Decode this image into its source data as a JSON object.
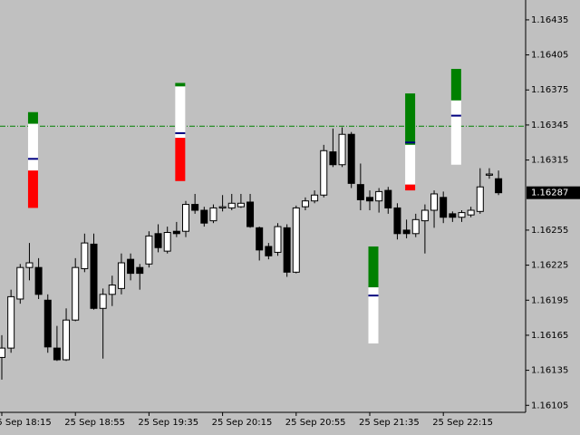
{
  "chart_data": {
    "type": "candlestick",
    "categories": [
      "25 Sep 18:15",
      null,
      null,
      null,
      null,
      null,
      null,
      null,
      "25 Sep 18:55",
      null,
      null,
      null,
      null,
      null,
      null,
      null,
      "25 Sep 19:35",
      null,
      null,
      null,
      null,
      null,
      null,
      null,
      "25 Sep 20:15",
      null,
      null,
      null,
      null,
      null,
      null,
      null,
      "25 Sep 20:55",
      null,
      null,
      null,
      null,
      null,
      null,
      null,
      "25 Sep 21:35",
      null,
      null,
      null,
      null,
      null,
      null,
      null,
      "25 Sep 22:15",
      null,
      null,
      null,
      null,
      null,
      null
    ],
    "candles": [
      {
        "open": 1.16146,
        "high": 1.16165,
        "low": 1.16127,
        "close": 1.16154
      },
      {
        "open": 1.16154,
        "high": 1.16204,
        "low": 1.1615,
        "close": 1.16198
      },
      {
        "open": 1.16196,
        "high": 1.16226,
        "low": 1.16192,
        "close": 1.16223
      },
      {
        "open": 1.16223,
        "high": 1.16244,
        "low": 1.16212,
        "close": 1.16227,
        "zone": {
          "top": 1.16356,
          "green_bottom": 1.16346,
          "mid": 1.16316,
          "red_top": 1.16306,
          "bottom": 1.16274
        }
      },
      {
        "open": 1.16223,
        "high": 1.16231,
        "low": 1.16196,
        "close": 1.162
      },
      {
        "open": 1.16195,
        "high": 1.162,
        "low": 1.1615,
        "close": 1.16155
      },
      {
        "open": 1.16154,
        "high": 1.16173,
        "low": 1.16143,
        "close": 1.16144
      },
      {
        "open": 1.16144,
        "high": 1.16188,
        "low": 1.16143,
        "close": 1.16178
      },
      {
        "open": 1.16178,
        "high": 1.16231,
        "low": 1.16177,
        "close": 1.16223
      },
      {
        "open": 1.16222,
        "high": 1.16252,
        "low": 1.16219,
        "close": 1.16244
      },
      {
        "open": 1.16243,
        "high": 1.16252,
        "low": 1.16187,
        "close": 1.16188
      },
      {
        "open": 1.16188,
        "high": 1.16205,
        "low": 1.16145,
        "close": 1.162
      },
      {
        "open": 1.162,
        "high": 1.16216,
        "low": 1.1619,
        "close": 1.16208
      },
      {
        "open": 1.16205,
        "high": 1.16235,
        "low": 1.162,
        "close": 1.16227
      },
      {
        "open": 1.1623,
        "high": 1.16235,
        "low": 1.16212,
        "close": 1.16218
      },
      {
        "open": 1.16223,
        "high": 1.16226,
        "low": 1.16204,
        "close": 1.16218
      },
      {
        "open": 1.16226,
        "high": 1.16254,
        "low": 1.16223,
        "close": 1.1625
      },
      {
        "open": 1.16252,
        "high": 1.1626,
        "low": 1.16236,
        "close": 1.1624
      },
      {
        "open": 1.16237,
        "high": 1.16258,
        "low": 1.16235,
        "close": 1.16253
      },
      {
        "open": 1.16254,
        "high": 1.16262,
        "low": 1.16249,
        "close": 1.16252,
        "zone": {
          "top": 1.16381,
          "green_bottom": 1.16378,
          "mid": 1.16338,
          "red_top": 1.16334,
          "bottom": 1.16297
        }
      },
      {
        "open": 1.16254,
        "high": 1.1628,
        "low": 1.16249,
        "close": 1.16277
      },
      {
        "open": 1.16277,
        "high": 1.16286,
        "low": 1.16269,
        "close": 1.16272
      },
      {
        "open": 1.16272,
        "high": 1.16275,
        "low": 1.16258,
        "close": 1.16261
      },
      {
        "open": 1.16263,
        "high": 1.16277,
        "low": 1.16261,
        "close": 1.16274
      },
      {
        "open": 1.16274,
        "high": 1.16285,
        "low": 1.16271,
        "close": 1.16275
      },
      {
        "open": 1.16274,
        "high": 1.16286,
        "low": 1.16272,
        "close": 1.16278
      },
      {
        "open": 1.16275,
        "high": 1.16286,
        "low": 1.16274,
        "close": 1.16278
      },
      {
        "open": 1.16279,
        "high": 1.16286,
        "low": 1.16257,
        "close": 1.16258
      },
      {
        "open": 1.16257,
        "high": 1.16258,
        "low": 1.16229,
        "close": 1.16238
      },
      {
        "open": 1.16241,
        "high": 1.16244,
        "low": 1.1623,
        "close": 1.16233
      },
      {
        "open": 1.16236,
        "high": 1.16261,
        "low": 1.16233,
        "close": 1.16258
      },
      {
        "open": 1.16257,
        "high": 1.1626,
        "low": 1.16215,
        "close": 1.16219
      },
      {
        "open": 1.16219,
        "high": 1.16276,
        "low": 1.16218,
        "close": 1.16274
      },
      {
        "open": 1.16275,
        "high": 1.16283,
        "low": 1.16272,
        "close": 1.1628
      },
      {
        "open": 1.1628,
        "high": 1.16289,
        "low": 1.16278,
        "close": 1.16285
      },
      {
        "open": 1.16285,
        "high": 1.16328,
        "low": 1.16283,
        "close": 1.16323
      },
      {
        "open": 1.16322,
        "high": 1.16342,
        "low": 1.16309,
        "close": 1.16311
      },
      {
        "open": 1.16311,
        "high": 1.16343,
        "low": 1.16309,
        "close": 1.16337
      },
      {
        "open": 1.16337,
        "high": 1.16339,
        "low": 1.16291,
        "close": 1.16295
      },
      {
        "open": 1.16294,
        "high": 1.16312,
        "low": 1.16272,
        "close": 1.16281
      },
      {
        "open": 1.16283,
        "high": 1.16289,
        "low": 1.16272,
        "close": 1.1628,
        "zone": {
          "top": 1.16241,
          "green_bottom": 1.16206,
          "mid": 1.16199,
          "red_top": 1.16158,
          "bottom": 1.16158
        }
      },
      {
        "open": 1.1628,
        "high": 1.16291,
        "low": 1.1627,
        "close": 1.16288
      },
      {
        "open": 1.16289,
        "high": 1.16292,
        "low": 1.16269,
        "close": 1.16274
      },
      {
        "open": 1.16274,
        "high": 1.16278,
        "low": 1.16247,
        "close": 1.16252
      },
      {
        "open": 1.16255,
        "high": 1.16264,
        "low": 1.16248,
        "close": 1.16252,
        "zone": {
          "top": 1.16372,
          "green_bottom": 1.16328,
          "mid": 1.1633,
          "red_top": 1.16294,
          "bottom": 1.16289
        }
      },
      {
        "open": 1.16252,
        "high": 1.16269,
        "low": 1.16249,
        "close": 1.16264
      },
      {
        "open": 1.16263,
        "high": 1.16277,
        "low": 1.16235,
        "close": 1.16272
      },
      {
        "open": 1.16272,
        "high": 1.16289,
        "low": 1.16257,
        "close": 1.16286
      },
      {
        "open": 1.16283,
        "high": 1.16288,
        "low": 1.16261,
        "close": 1.16266
      },
      {
        "open": 1.16269,
        "high": 1.16271,
        "low": 1.16262,
        "close": 1.16266,
        "zone": {
          "top": 1.16393,
          "green_bottom": 1.16366,
          "mid": 1.16353,
          "red_top": 1.16311,
          "bottom": 1.16311
        }
      },
      {
        "open": 1.16266,
        "high": 1.16272,
        "low": 1.16262,
        "close": 1.1627
      },
      {
        "open": 1.16268,
        "high": 1.16275,
        "low": 1.16266,
        "close": 1.16272
      },
      {
        "open": 1.16271,
        "high": 1.16308,
        "low": 1.16269,
        "close": 1.16292
      },
      {
        "open": 1.16302,
        "high": 1.16308,
        "low": 1.16299,
        "close": 1.16303
      },
      {
        "open": 1.16299,
        "high": 1.16306,
        "low": 1.16285,
        "close": 1.16287
      }
    ],
    "up_color": "#ffffff",
    "down_color": "#000000",
    "zone_colors": {
      "green": "#008000",
      "white": "#ffffff",
      "red": "#ff0000",
      "mid": "#000080"
    },
    "ylim": [
      1.16099,
      1.16452
    ],
    "yticks": [
      1.16435,
      1.16405,
      1.16375,
      1.16345,
      1.16315,
      1.16255,
      1.16225,
      1.16195,
      1.16165,
      1.16135,
      1.16105
    ],
    "current_price": 1.16287,
    "level_line": {
      "value": 1.16344,
      "color": "#008000"
    }
  }
}
